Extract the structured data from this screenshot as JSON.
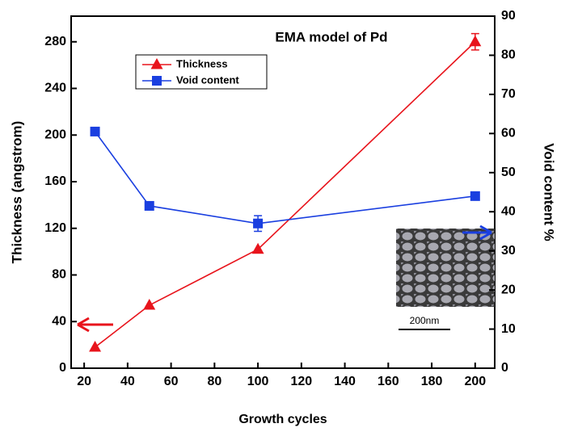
{
  "chart_data": {
    "type": "line",
    "title": "EMA model of Pd",
    "x_label": "Growth cycles",
    "y_label": "Thickness (angstrom)",
    "y2_label": "Void content %",
    "x": [
      25,
      50,
      100,
      200
    ],
    "series": [
      {
        "name": "Thickness",
        "color": "#e8141c",
        "marker": "triangle",
        "values": [
          18,
          54,
          102,
          280
        ],
        "errors": [
          null,
          null,
          null,
          7
        ]
      },
      {
        "name": "Void content",
        "color": "#1a3fe0",
        "marker": "square",
        "axis": "y2",
        "values": [
          60.5,
          41.5,
          37,
          44
        ],
        "errors": [
          null,
          null,
          2,
          null
        ]
      }
    ],
    "xlim": [
      14,
      209
    ],
    "xticks": [
      20,
      40,
      60,
      80,
      100,
      120,
      140,
      160,
      180,
      200
    ],
    "ylim": [
      0,
      302
    ],
    "yticks": [
      0,
      40,
      80,
      120,
      160,
      200,
      240,
      280
    ],
    "y2lim": [
      0,
      90
    ],
    "y2ticks": [
      0,
      10,
      20,
      30,
      40,
      50,
      60,
      70,
      80,
      90
    ],
    "inset_scale_label": "200nm",
    "grid": false,
    "legend_position": "upper left"
  }
}
